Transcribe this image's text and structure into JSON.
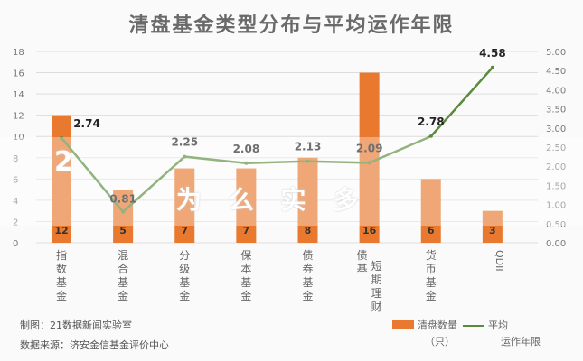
{
  "chart_data": {
    "type": "bar+line",
    "title": "清盘基金类型分布与平均运作年限",
    "categories": [
      "指数基金",
      "混合基金",
      "分级基金",
      "保本基金",
      "债券基金",
      "债基|短期理财",
      "货币基金",
      "QDII"
    ],
    "series": [
      {
        "name": "清盘数量（只）",
        "type": "bar",
        "axis": "left",
        "color": "#e8792e",
        "values": [
          12,
          5,
          7,
          7,
          8,
          16,
          6,
          3
        ]
      },
      {
        "name": "平均运作年限",
        "type": "line",
        "axis": "right",
        "color": "#5a8a3a",
        "values": [
          2.74,
          0.81,
          2.25,
          2.08,
          2.13,
          2.09,
          2.78,
          4.58
        ]
      }
    ],
    "left_axis": {
      "range": [
        0,
        18
      ],
      "ticks": [
        "0",
        "2",
        "4",
        "6",
        "8",
        "10",
        "12",
        "14",
        "16",
        "18"
      ]
    },
    "right_axis": {
      "range": [
        0,
        5
      ],
      "ticks": [
        "0.00",
        "0.50",
        "1.00",
        "1.50",
        "2.00",
        "2.50",
        "3.00",
        "3.50",
        "4.00",
        "4.50",
        "5.00"
      ]
    },
    "grid": true,
    "legend_position": "bottom-right"
  },
  "notes": {
    "made_by": "制图：21数据新闻实验室",
    "source": "数据来源：济安金信基金评价中心"
  },
  "legend": {
    "bar_line1": "清盘数量",
    "bar_line2": "（只）",
    "line_line1": "平均",
    "line_line2": "运作年限"
  },
  "banner": {
    "frag1": "2",
    "frag2": "为 么 实 多"
  }
}
